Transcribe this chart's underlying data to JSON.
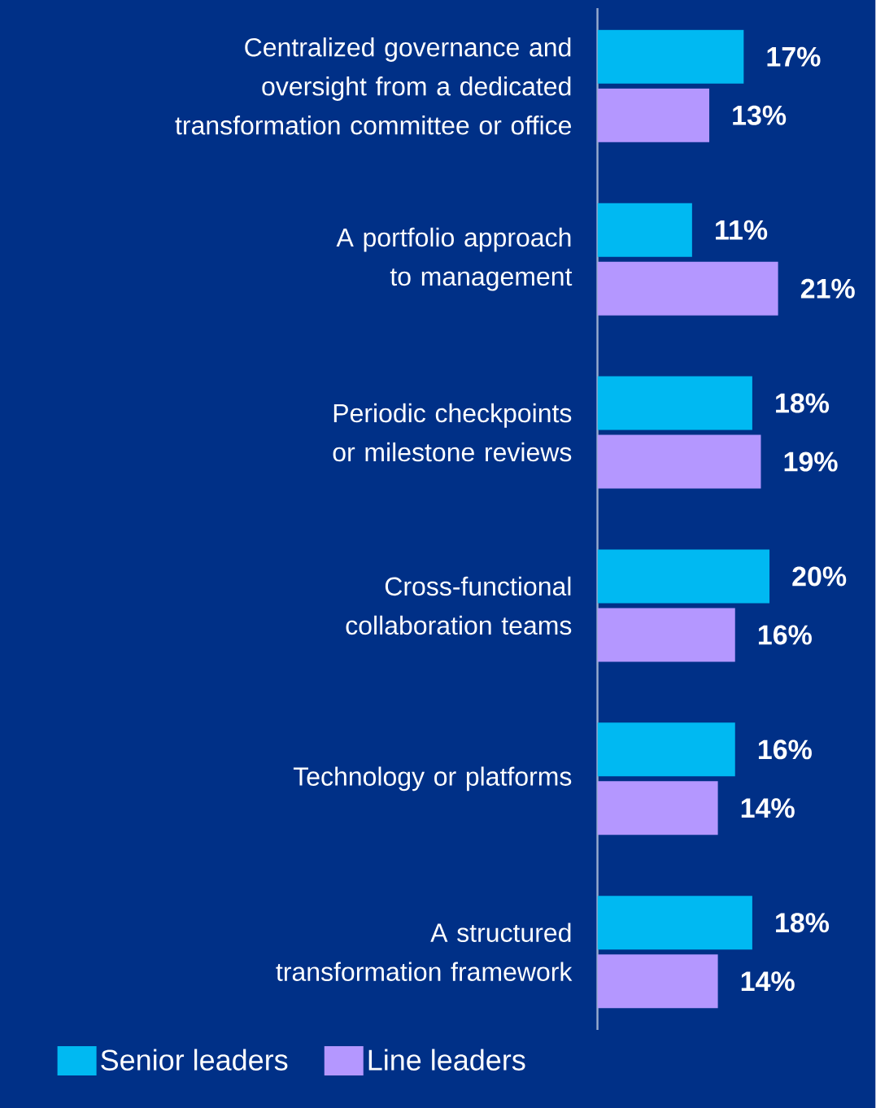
{
  "chart_data": {
    "type": "bar",
    "orientation": "horizontal",
    "categories": [
      "Centralized governance and oversight from a dedicated transformation committee or office",
      "A portfolio approach to management",
      "Periodic checkpoints or milestone reviews",
      "Cross-functional collaboration teams",
      "Technology or platforms",
      "A structured transformation framework"
    ],
    "series": [
      {
        "name": "Senior leaders",
        "color": "#00b9f2",
        "values": [
          17,
          11,
          18,
          20,
          16,
          18
        ],
        "value_labels": [
          "17%",
          "11%",
          "18%",
          "20%",
          "16%",
          "18%"
        ]
      },
      {
        "name": "Line leaders",
        "color": "#b497ff",
        "values": [
          13,
          21,
          19,
          16,
          14,
          14
        ],
        "value_labels": [
          "13%",
          "21%",
          "19%",
          "16%",
          "14%",
          "14%"
        ]
      }
    ],
    "legend": "bottom left"
  }
}
